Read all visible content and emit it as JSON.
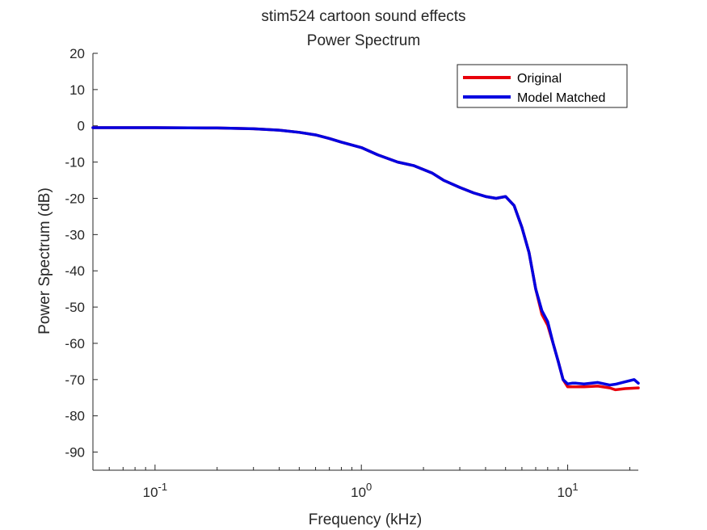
{
  "chart_data": {
    "type": "line",
    "title": "stim524 cartoon sound effects",
    "subtitle": "Power Spectrum",
    "xlabel": "Frequency (kHz)",
    "ylabel": "Power Spectrum (dB)",
    "xscale": "log",
    "xlim": [
      0.05,
      22
    ],
    "ylim": [
      -95,
      20
    ],
    "x_ticks": [
      0.1,
      1,
      10
    ],
    "x_tick_labels": [
      {
        "base": "10",
        "exp": "-1"
      },
      {
        "base": "10",
        "exp": "0"
      },
      {
        "base": "10",
        "exp": "1"
      }
    ],
    "y_ticks": [
      20,
      10,
      0,
      -10,
      -20,
      -30,
      -40,
      -50,
      -60,
      -70,
      -80,
      -90
    ],
    "y_tick_labels": [
      "20",
      "10",
      "0",
      "-10",
      "-20",
      "-30",
      "-40",
      "-50",
      "-60",
      "-70",
      "-80",
      "-90"
    ],
    "grid": false,
    "legend_position": "top-right",
    "series": [
      {
        "name": "Original",
        "color": "#e8000b",
        "x": [
          0.05,
          0.1,
          0.2,
          0.3,
          0.4,
          0.5,
          0.6,
          0.7,
          0.8,
          1.0,
          1.2,
          1.5,
          1.8,
          2.2,
          2.5,
          3.0,
          3.5,
          4.0,
          4.5,
          5.0,
          5.5,
          6.0,
          6.5,
          7.0,
          7.5,
          8.0,
          8.5,
          9.0,
          9.5,
          10.0,
          10.5,
          11,
          12,
          14,
          16,
          17,
          19,
          22
        ],
        "y": [
          -0.5,
          -0.5,
          -0.6,
          -0.8,
          -1.2,
          -1.8,
          -2.5,
          -3.5,
          -4.5,
          -6.0,
          -8.0,
          -10.0,
          -11.0,
          -13.0,
          -15.0,
          -17.0,
          -18.5,
          -19.5,
          -20.0,
          -19.5,
          -22.0,
          -28.0,
          -35.0,
          -45.0,
          -52.0,
          -55.0,
          -60.0,
          -65.0,
          -70.0,
          -72.0,
          -72.0,
          -72.0,
          -72.0,
          -71.8,
          -72.3,
          -72.8,
          -72.5,
          -72.3
        ]
      },
      {
        "name": "Model Matched",
        "color": "#0000e0",
        "x": [
          0.05,
          0.1,
          0.2,
          0.3,
          0.4,
          0.5,
          0.6,
          0.7,
          0.8,
          1.0,
          1.2,
          1.5,
          1.8,
          2.2,
          2.5,
          3.0,
          3.5,
          4.0,
          4.5,
          5.0,
          5.5,
          6.0,
          6.5,
          7.0,
          7.5,
          8.0,
          8.5,
          9.0,
          9.5,
          10.0,
          10.5,
          11,
          12,
          14,
          16,
          17,
          19,
          21,
          22
        ],
        "y": [
          -0.5,
          -0.5,
          -0.6,
          -0.8,
          -1.2,
          -1.8,
          -2.5,
          -3.5,
          -4.5,
          -6.0,
          -8.0,
          -10.0,
          -11.0,
          -13.0,
          -15.0,
          -17.0,
          -18.5,
          -19.5,
          -20.0,
          -19.5,
          -22.0,
          -28.0,
          -35.0,
          -45.0,
          -51.0,
          -54.0,
          -60.0,
          -65.0,
          -70.0,
          -71.2,
          -71.0,
          -71.0,
          -71.2,
          -70.8,
          -71.5,
          -71.3,
          -70.6,
          -70.0,
          -71.0
        ]
      }
    ]
  }
}
